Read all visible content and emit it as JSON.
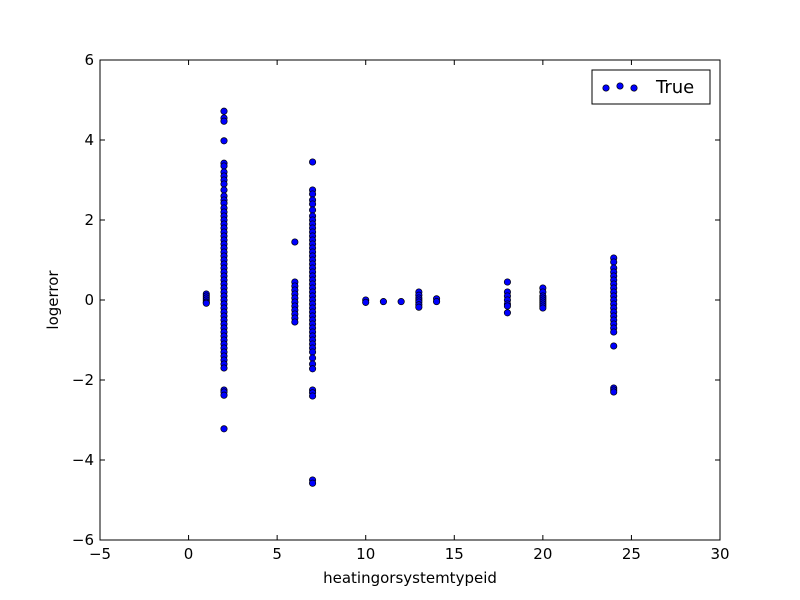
{
  "chart_data": {
    "type": "scatter",
    "xlabel": "heatingorsystemtypeid",
    "ylabel": "logerror",
    "xlim": [
      -5,
      30
    ],
    "ylim": [
      -6,
      6
    ],
    "xticks": [
      -5,
      0,
      5,
      10,
      15,
      20,
      25,
      30
    ],
    "yticks": [
      -6,
      -4,
      -2,
      0,
      2,
      4,
      6
    ],
    "grid": false,
    "legend_position": "top-right",
    "marker_color": "#0000ff",
    "series": [
      {
        "name": "True",
        "points": [
          [
            1,
            0.15
          ],
          [
            1,
            0.1
          ],
          [
            1,
            0.05
          ],
          [
            1,
            0.0
          ],
          [
            1,
            -0.05
          ],
          [
            1,
            -0.08
          ],
          [
            2,
            4.72
          ],
          [
            2,
            4.55
          ],
          [
            2,
            4.47
          ],
          [
            2,
            3.98
          ],
          [
            2,
            3.42
          ],
          [
            2,
            3.35
          ],
          [
            2,
            3.2
          ],
          [
            2,
            3.1
          ],
          [
            2,
            3.0
          ],
          [
            2,
            2.9
          ],
          [
            2,
            2.75
          ],
          [
            2,
            2.6
          ],
          [
            2,
            2.5
          ],
          [
            2,
            2.42
          ],
          [
            2,
            2.3
          ],
          [
            2,
            2.2
          ],
          [
            2,
            2.1
          ],
          [
            2,
            2.0
          ],
          [
            2,
            1.9
          ],
          [
            2,
            1.8
          ],
          [
            2,
            1.7
          ],
          [
            2,
            1.6
          ],
          [
            2,
            1.5
          ],
          [
            2,
            1.4
          ],
          [
            2,
            1.3
          ],
          [
            2,
            1.2
          ],
          [
            2,
            1.1
          ],
          [
            2,
            1.0
          ],
          [
            2,
            0.9
          ],
          [
            2,
            0.8
          ],
          [
            2,
            0.7
          ],
          [
            2,
            0.6
          ],
          [
            2,
            0.5
          ],
          [
            2,
            0.4
          ],
          [
            2,
            0.3
          ],
          [
            2,
            0.2
          ],
          [
            2,
            0.1
          ],
          [
            2,
            0.0
          ],
          [
            2,
            -0.1
          ],
          [
            2,
            -0.2
          ],
          [
            2,
            -0.3
          ],
          [
            2,
            -0.4
          ],
          [
            2,
            -0.5
          ],
          [
            2,
            -0.6
          ],
          [
            2,
            -0.7
          ],
          [
            2,
            -0.8
          ],
          [
            2,
            -0.9
          ],
          [
            2,
            -1.0
          ],
          [
            2,
            -1.1
          ],
          [
            2,
            -1.2
          ],
          [
            2,
            -1.3
          ],
          [
            2,
            -1.4
          ],
          [
            2,
            -1.5
          ],
          [
            2,
            -1.6
          ],
          [
            2,
            -1.7
          ],
          [
            2,
            -2.25
          ],
          [
            2,
            -2.3
          ],
          [
            2,
            -2.38
          ],
          [
            2,
            -3.22
          ],
          [
            6,
            1.45
          ],
          [
            6,
            0.45
          ],
          [
            6,
            0.35
          ],
          [
            6,
            0.25
          ],
          [
            6,
            0.15
          ],
          [
            6,
            0.05
          ],
          [
            6,
            -0.05
          ],
          [
            6,
            -0.15
          ],
          [
            6,
            -0.25
          ],
          [
            6,
            -0.35
          ],
          [
            6,
            -0.45
          ],
          [
            6,
            -0.55
          ],
          [
            7,
            3.45
          ],
          [
            7,
            2.75
          ],
          [
            7,
            2.65
          ],
          [
            7,
            2.5
          ],
          [
            7,
            2.4
          ],
          [
            7,
            2.25
          ],
          [
            7,
            2.1
          ],
          [
            7,
            2.0
          ],
          [
            7,
            1.9
          ],
          [
            7,
            1.8
          ],
          [
            7,
            1.7
          ],
          [
            7,
            1.6
          ],
          [
            7,
            1.5
          ],
          [
            7,
            1.4
          ],
          [
            7,
            1.3
          ],
          [
            7,
            1.2
          ],
          [
            7,
            1.1
          ],
          [
            7,
            1.0
          ],
          [
            7,
            0.9
          ],
          [
            7,
            0.8
          ],
          [
            7,
            0.7
          ],
          [
            7,
            0.6
          ],
          [
            7,
            0.5
          ],
          [
            7,
            0.4
          ],
          [
            7,
            0.3
          ],
          [
            7,
            0.2
          ],
          [
            7,
            0.1
          ],
          [
            7,
            0.0
          ],
          [
            7,
            -0.1
          ],
          [
            7,
            -0.2
          ],
          [
            7,
            -0.3
          ],
          [
            7,
            -0.4
          ],
          [
            7,
            -0.5
          ],
          [
            7,
            -0.6
          ],
          [
            7,
            -0.7
          ],
          [
            7,
            -0.8
          ],
          [
            7,
            -0.9
          ],
          [
            7,
            -1.0
          ],
          [
            7,
            -1.1
          ],
          [
            7,
            -1.2
          ],
          [
            7,
            -1.3
          ],
          [
            7,
            -1.45
          ],
          [
            7,
            -1.6
          ],
          [
            7,
            -1.72
          ],
          [
            7,
            -2.25
          ],
          [
            7,
            -2.32
          ],
          [
            7,
            -2.4
          ],
          [
            7,
            -4.5
          ],
          [
            7,
            -4.58
          ],
          [
            10,
            0.0
          ],
          [
            10,
            -0.06
          ],
          [
            11,
            -0.04
          ],
          [
            12,
            -0.04
          ],
          [
            13,
            0.2
          ],
          [
            13,
            0.12
          ],
          [
            13,
            0.05
          ],
          [
            13,
            0.0
          ],
          [
            13,
            -0.05
          ],
          [
            13,
            -0.12
          ],
          [
            13,
            -0.18
          ],
          [
            14,
            0.03
          ],
          [
            14,
            -0.04
          ],
          [
            18,
            0.45
          ],
          [
            18,
            0.2
          ],
          [
            18,
            0.1
          ],
          [
            18,
            0.0
          ],
          [
            18,
            -0.1
          ],
          [
            18,
            -0.15
          ],
          [
            18,
            -0.32
          ],
          [
            20,
            0.3
          ],
          [
            20,
            0.2
          ],
          [
            20,
            0.1
          ],
          [
            20,
            0.05
          ],
          [
            20,
            0.0
          ],
          [
            20,
            -0.05
          ],
          [
            20,
            -0.1
          ],
          [
            20,
            -0.15
          ],
          [
            20,
            -0.2
          ],
          [
            24,
            1.05
          ],
          [
            24,
            0.95
          ],
          [
            24,
            0.8
          ],
          [
            24,
            0.7
          ],
          [
            24,
            0.6
          ],
          [
            24,
            0.5
          ],
          [
            24,
            0.4
          ],
          [
            24,
            0.3
          ],
          [
            24,
            0.2
          ],
          [
            24,
            0.1
          ],
          [
            24,
            0.0
          ],
          [
            24,
            -0.1
          ],
          [
            24,
            -0.2
          ],
          [
            24,
            -0.3
          ],
          [
            24,
            -0.4
          ],
          [
            24,
            -0.5
          ],
          [
            24,
            -0.6
          ],
          [
            24,
            -0.7
          ],
          [
            24,
            -0.8
          ],
          [
            24,
            -1.15
          ],
          [
            24,
            -2.2
          ],
          [
            24,
            -2.25
          ],
          [
            24,
            -2.3
          ]
        ]
      }
    ]
  }
}
